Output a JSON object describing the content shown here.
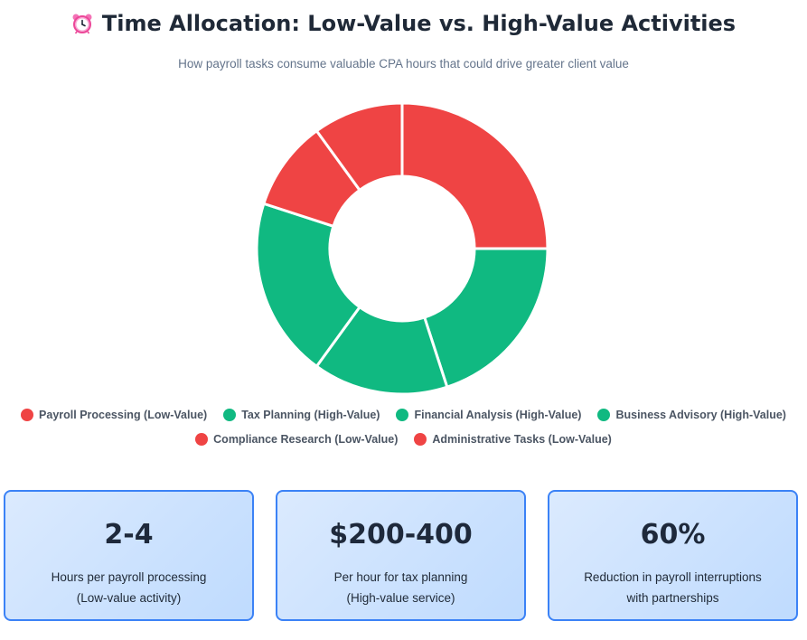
{
  "header": {
    "icon": "alarm-clock-icon",
    "title": "Time Allocation: Low-Value vs. High-Value Activities",
    "subtitle": "How payroll tasks consume valuable CPA hours that could drive greater client value"
  },
  "colors": {
    "low_value": "#ef4444",
    "high_value": "#10b981",
    "card_border": "#3b82f6"
  },
  "chart_data": {
    "type": "pie",
    "variant": "doughnut",
    "title": "",
    "categories": [
      "Payroll Processing (Low-Value)",
      "Tax Planning (High-Value)",
      "Financial Analysis (High-Value)",
      "Business Advisory (High-Value)",
      "Compliance Research (Low-Value)",
      "Administrative Tasks (Low-Value)"
    ],
    "values": [
      25,
      20,
      15,
      20,
      10,
      10
    ],
    "colors": [
      "#ef4444",
      "#10b981",
      "#10b981",
      "#10b981",
      "#ef4444",
      "#ef4444"
    ],
    "legend_position": "bottom"
  },
  "stats": [
    {
      "value": "2-4",
      "label_line1": "Hours per payroll processing",
      "label_line2": "(Low-value activity)"
    },
    {
      "value": "$200-400",
      "label_line1": "Per hour for tax planning",
      "label_line2": "(High-value service)"
    },
    {
      "value": "60%",
      "label_line1": "Reduction in payroll interruptions",
      "label_line2": "with partnerships"
    }
  ]
}
